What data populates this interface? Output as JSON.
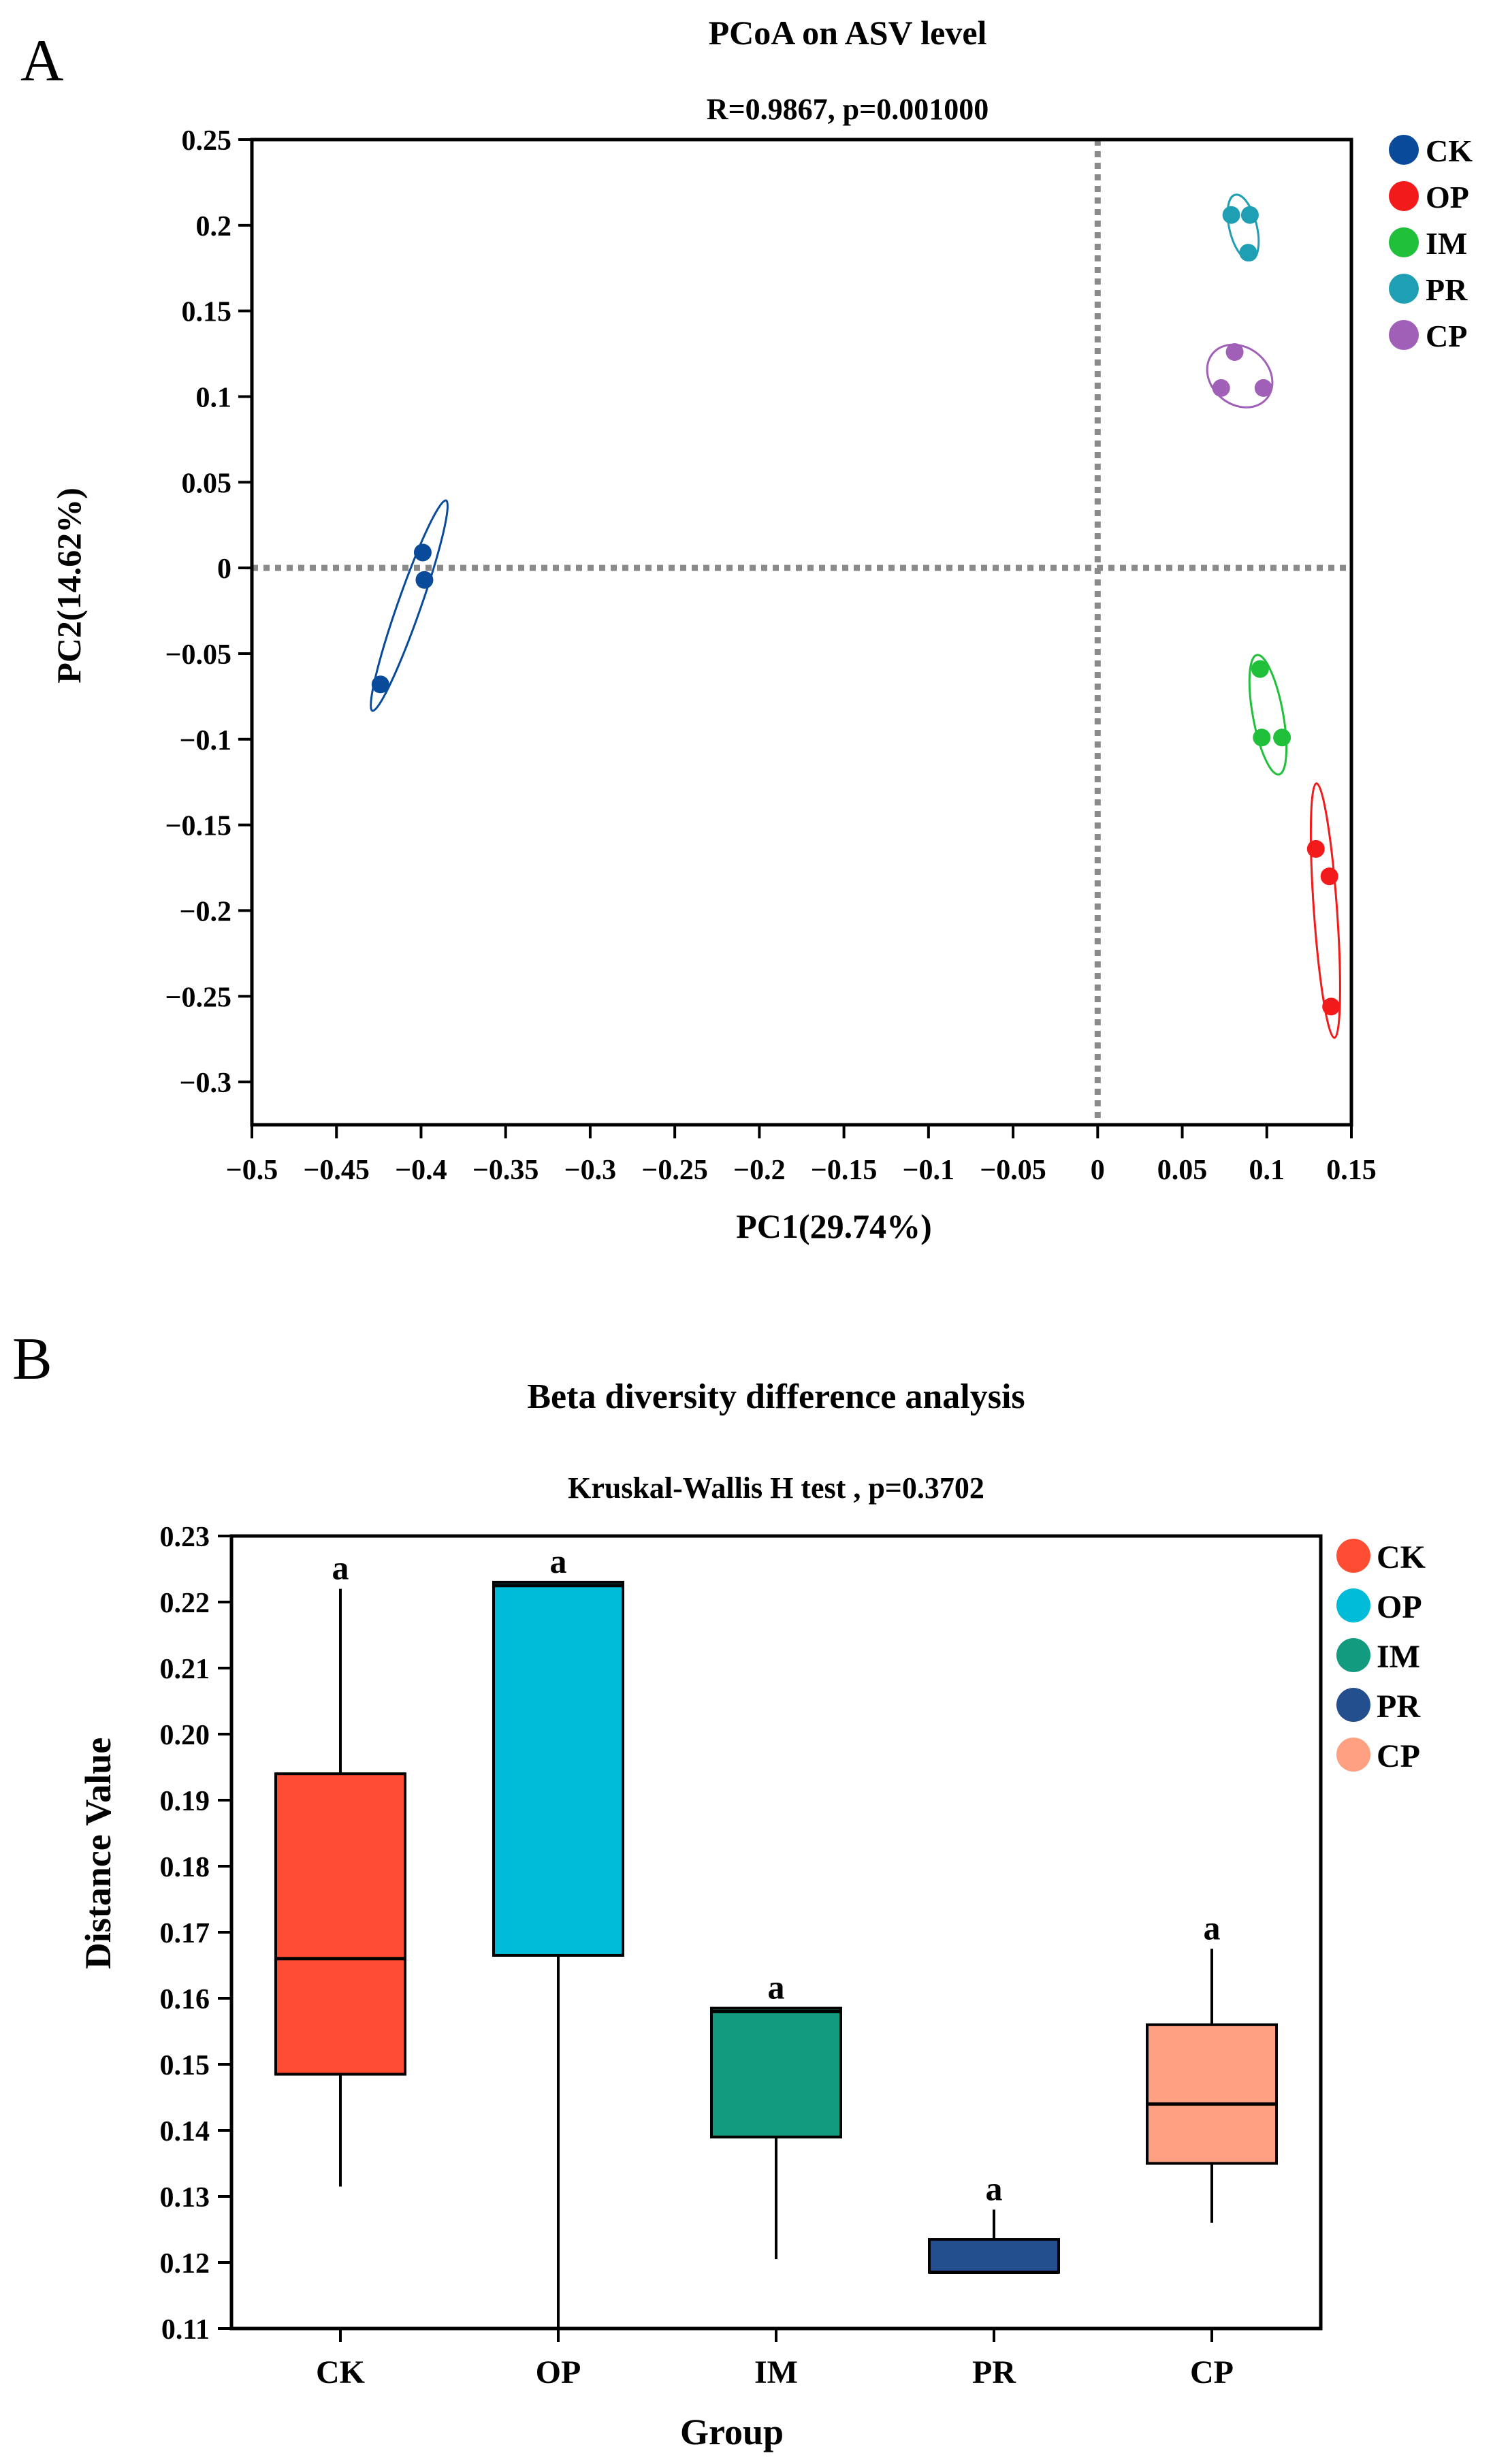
{
  "chart_data": [
    {
      "panel_letter": "A",
      "type": "scatter",
      "title": "PCoA on ASV level",
      "subtitle": "R=0.9867,  p=0.001000",
      "xlabel": "PC1(29.74%)",
      "ylabel": "PC2(14.62%)",
      "xlim": [
        -0.5,
        0.15
      ],
      "ylim": [
        -0.325,
        0.25
      ],
      "x_ticks": [
        {
          "v": -0.5,
          "label": "−0.5"
        },
        {
          "v": -0.45,
          "label": "−0.45"
        },
        {
          "v": -0.4,
          "label": "−0.4"
        },
        {
          "v": -0.35,
          "label": "−0.35"
        },
        {
          "v": -0.3,
          "label": "−0.3"
        },
        {
          "v": -0.25,
          "label": "−0.25"
        },
        {
          "v": -0.2,
          "label": "−0.2"
        },
        {
          "v": -0.15,
          "label": "−0.15"
        },
        {
          "v": -0.1,
          "label": "−0.1"
        },
        {
          "v": -0.05,
          "label": "−0.05"
        },
        {
          "v": 0,
          "label": "0"
        },
        {
          "v": 0.05,
          "label": "0.05"
        },
        {
          "v": 0.1,
          "label": "0.1"
        },
        {
          "v": 0.15,
          "label": "0.15"
        }
      ],
      "y_ticks": [
        {
          "v": 0.25,
          "label": "0.25"
        },
        {
          "v": 0.2,
          "label": "0.2"
        },
        {
          "v": 0.15,
          "label": "0.15"
        },
        {
          "v": 0.1,
          "label": "0.1"
        },
        {
          "v": 0.05,
          "label": "0.05"
        },
        {
          "v": 0,
          "label": "0"
        },
        {
          "v": -0.05,
          "label": "−0.05"
        },
        {
          "v": -0.1,
          "label": "−0.1"
        },
        {
          "v": -0.15,
          "label": "−0.15"
        },
        {
          "v": -0.2,
          "label": "−0.2"
        },
        {
          "v": -0.25,
          "label": "−0.25"
        },
        {
          "v": -0.3,
          "label": "−0.3"
        }
      ],
      "reference_lines": {
        "x": 0,
        "y": 0,
        "style": "dotted"
      },
      "legend_position": "right",
      "series": [
        {
          "name": "CK",
          "color": "#0a4a9a",
          "points": [
            [
              -0.399,
              0.009
            ],
            [
              -0.398,
              -0.007
            ],
            [
              -0.424,
              -0.068
            ]
          ]
        },
        {
          "name": "OP",
          "color": "#f21a1a",
          "points": [
            [
              0.129,
              -0.164
            ],
            [
              0.137,
              -0.18
            ],
            [
              0.138,
              -0.256
            ]
          ]
        },
        {
          "name": "IM",
          "color": "#20c03a",
          "points": [
            [
              0.096,
              -0.059
            ],
            [
              0.097,
              -0.099
            ],
            [
              0.109,
              -0.099
            ]
          ]
        },
        {
          "name": "PR",
          "color": "#1f9fb3",
          "points": [
            [
              0.079,
              0.206
            ],
            [
              0.09,
              0.206
            ],
            [
              0.089,
              0.184
            ]
          ]
        },
        {
          "name": "CP",
          "color": "#a060b8",
          "points": [
            [
              0.081,
              0.126
            ],
            [
              0.073,
              0.105
            ],
            [
              0.098,
              0.105
            ]
          ]
        }
      ]
    },
    {
      "panel_letter": "B",
      "type": "box",
      "title": "Beta diversity difference analysis",
      "subtitle": "Kruskal-Wallis H test , p=0.3702",
      "xlabel": "Group",
      "ylabel": "Distance Value",
      "ylim": [
        0.11,
        0.23
      ],
      "y_ticks": [
        {
          "v": 0.23,
          "label": "0.23"
        },
        {
          "v": 0.22,
          "label": "0.22"
        },
        {
          "v": 0.21,
          "label": "0.21"
        },
        {
          "v": 0.2,
          "label": "0.20"
        },
        {
          "v": 0.19,
          "label": "0.19"
        },
        {
          "v": 0.18,
          "label": "0.18"
        },
        {
          "v": 0.17,
          "label": "0.17"
        },
        {
          "v": 0.16,
          "label": "0.16"
        },
        {
          "v": 0.15,
          "label": "0.15"
        },
        {
          "v": 0.14,
          "label": "0.14"
        },
        {
          "v": 0.13,
          "label": "0.13"
        },
        {
          "v": 0.12,
          "label": "0.12"
        },
        {
          "v": 0.11,
          "label": "0.11"
        }
      ],
      "legend_position": "right",
      "groups": [
        {
          "name": "CK",
          "color": "#ff4d33",
          "min": 0.1315,
          "q1": 0.1485,
          "median": 0.166,
          "q3": 0.194,
          "max": 0.222,
          "significance": "a"
        },
        {
          "name": "OP",
          "color": "#00bcd8",
          "min": 0.11,
          "q1": 0.1665,
          "median": 0.2225,
          "q3": 0.223,
          "max": 0.223,
          "significance": "a"
        },
        {
          "name": "IM",
          "color": "#129b7e",
          "min": 0.1205,
          "q1": 0.139,
          "median": 0.158,
          "q3": 0.1585,
          "max": 0.1585,
          "significance": "a"
        },
        {
          "name": "PR",
          "color": "#234f8e",
          "min": 0.1185,
          "q1": 0.1185,
          "median": 0.1185,
          "q3": 0.1235,
          "max": 0.128,
          "significance": "a"
        },
        {
          "name": "CP",
          "color": "#ffa082",
          "min": 0.126,
          "q1": 0.135,
          "median": 0.144,
          "q3": 0.156,
          "max": 0.1675,
          "significance": "a"
        }
      ]
    }
  ]
}
